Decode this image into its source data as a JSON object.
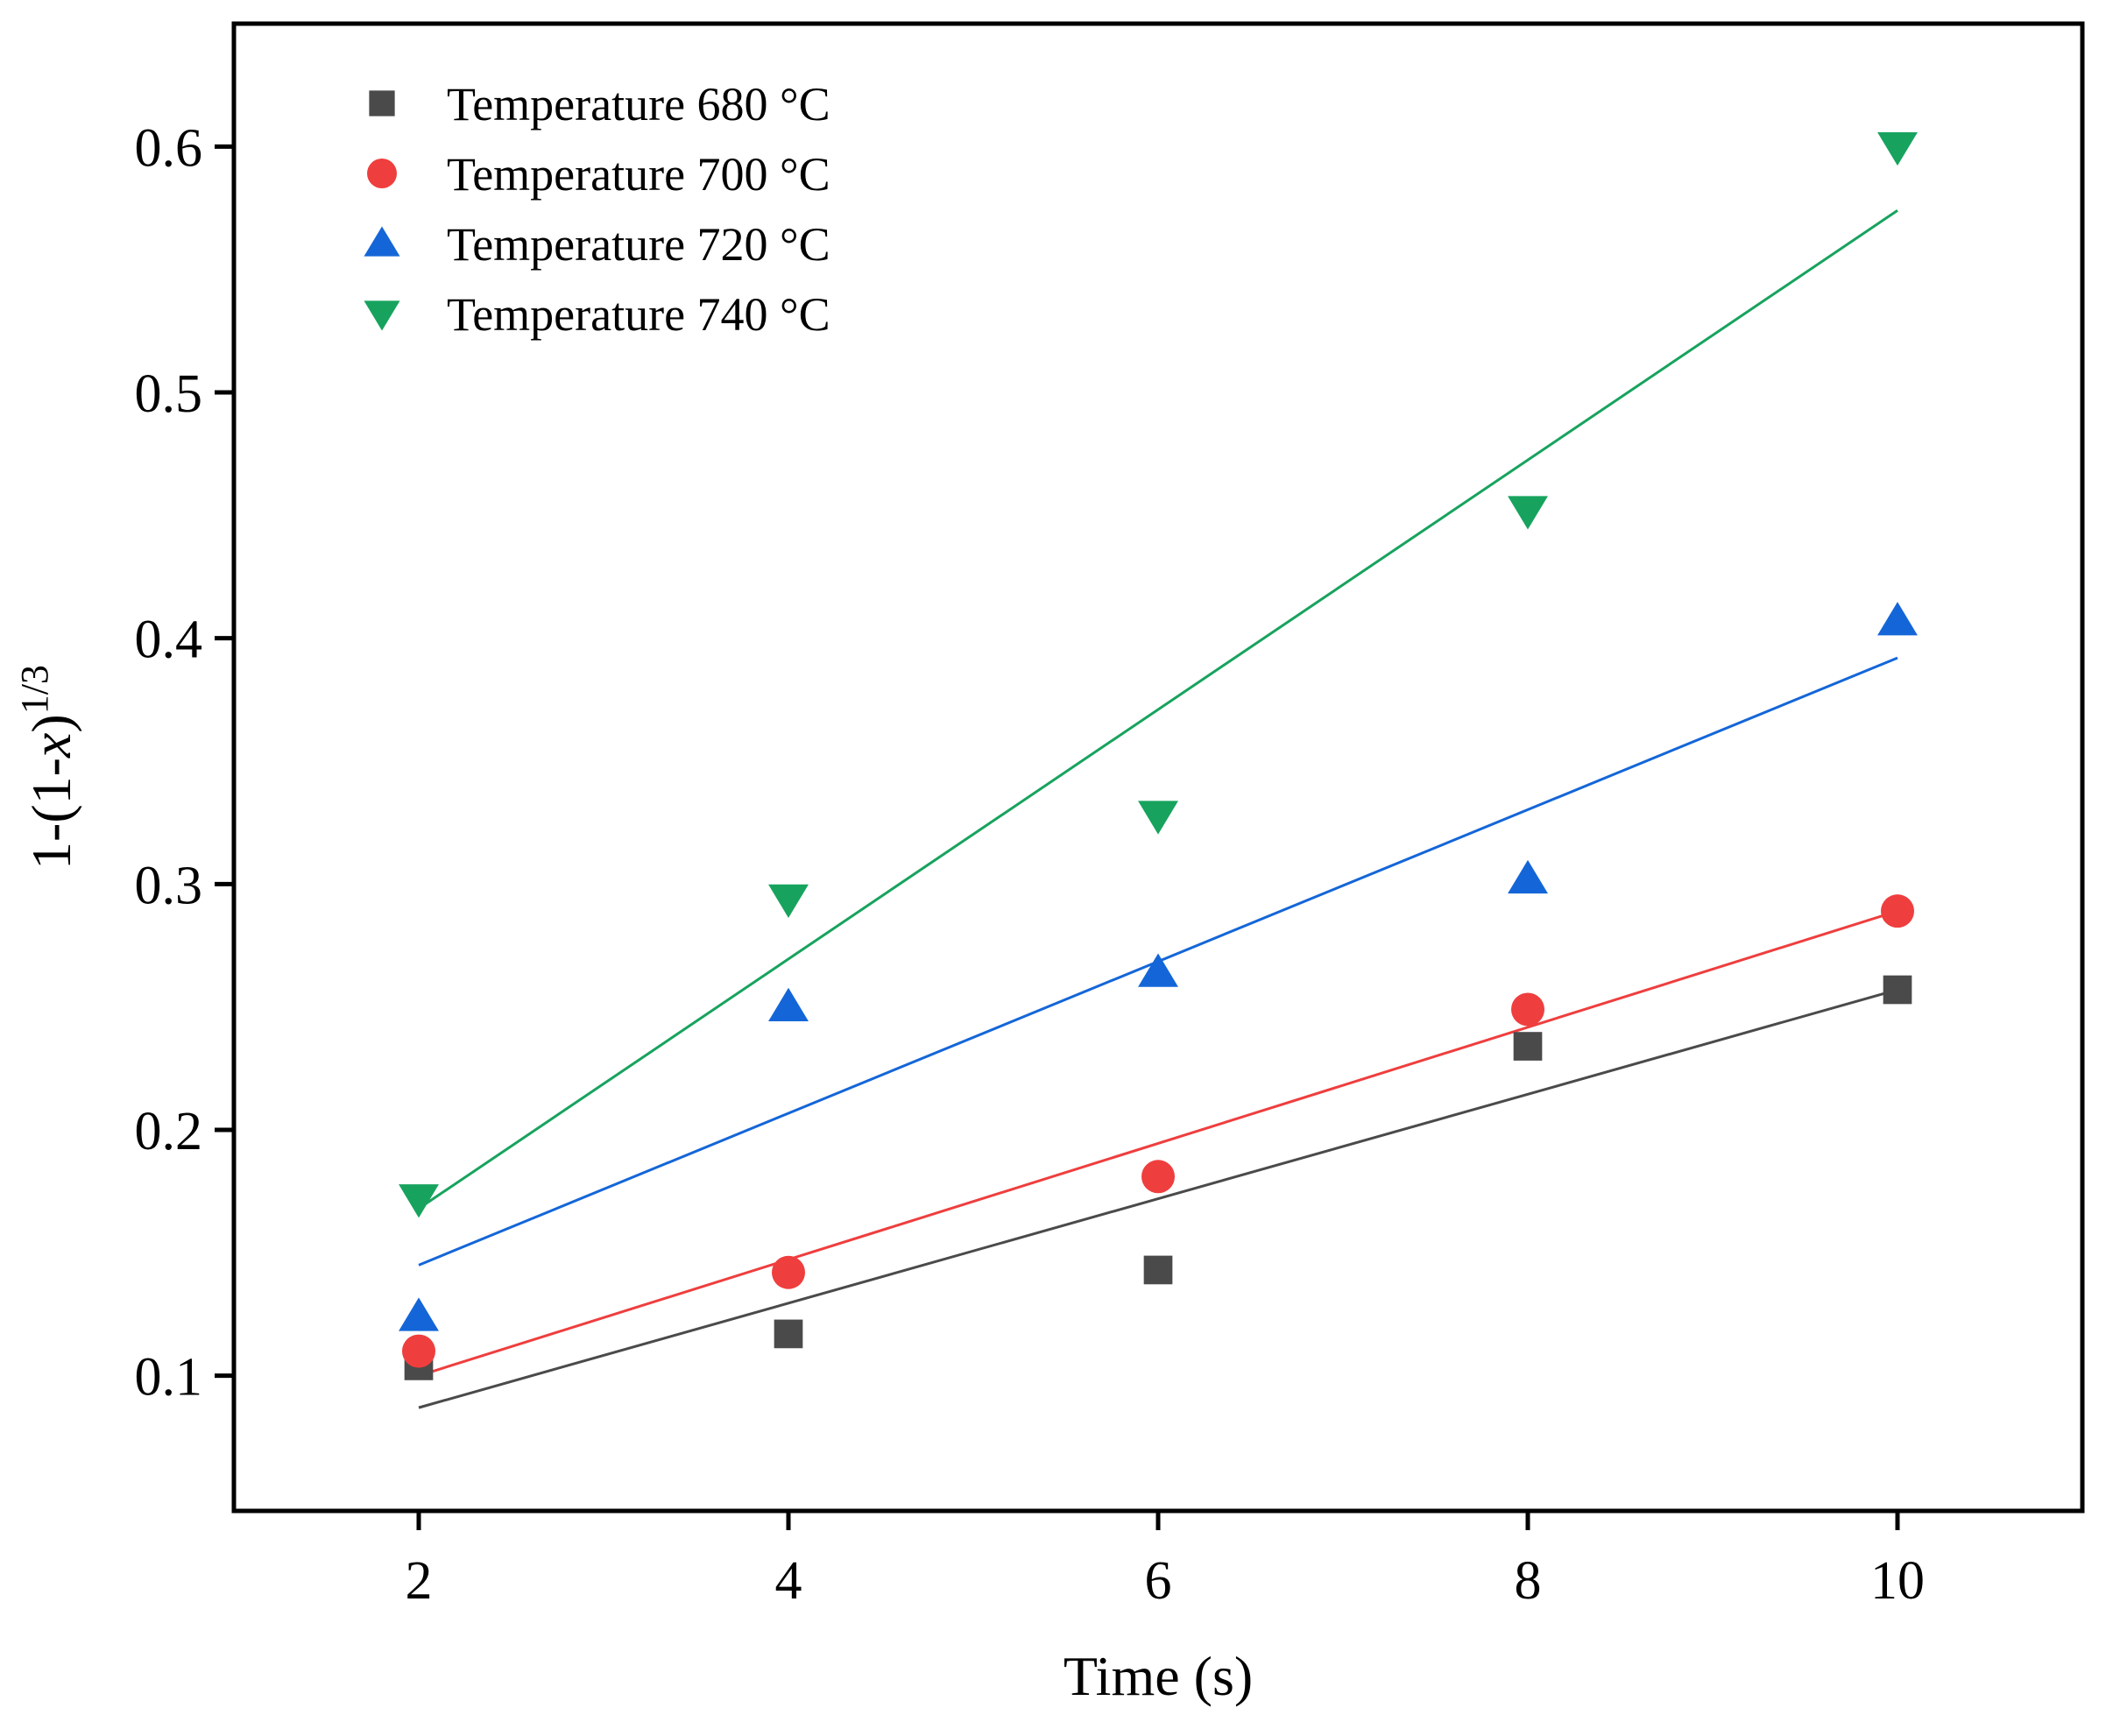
{
  "chart_data": {
    "type": "scatter",
    "title": "",
    "xlabel": "Time (s)",
    "ylabel": {
      "prefix": "1-(1-",
      "var": "x",
      "suffix": ")",
      "exponent": "1/3"
    },
    "xlim": [
      1,
      11
    ],
    "ylim": [
      0.045,
      0.65
    ],
    "x_ticks": [
      2,
      4,
      6,
      8,
      10
    ],
    "y_ticks": [
      0.1,
      0.2,
      0.3,
      0.4,
      0.5,
      0.6
    ],
    "x_tick_labels": [
      "2",
      "4",
      "6",
      "8",
      "10"
    ],
    "y_tick_labels": [
      "0.1",
      "0.2",
      "0.3",
      "0.4",
      "0.5",
      "0.6"
    ],
    "legend_position": "top-left",
    "grid": false,
    "series": [
      {
        "name": "Temperature 680 °C",
        "marker": "square",
        "color": "#4a4a4a",
        "x": [
          2,
          4,
          6,
          8,
          10
        ],
        "y": [
          0.104,
          0.117,
          0.143,
          0.234,
          0.257
        ],
        "fit": {
          "x": [
            2,
            10
          ],
          "y": [
            0.087,
            0.257
          ]
        }
      },
      {
        "name": "Temperature 700 °C",
        "marker": "circle",
        "color": "#ef3e3e",
        "x": [
          2,
          4,
          6,
          8,
          10
        ],
        "y": [
          0.11,
          0.142,
          0.181,
          0.249,
          0.289
        ],
        "fit": {
          "x": [
            2,
            10
          ],
          "y": [
            0.1,
            0.289
          ]
        }
      },
      {
        "name": "Temperature 720 °C",
        "marker": "triangle-up",
        "color": "#1466d8",
        "x": [
          2,
          4,
          6,
          8,
          10
        ],
        "y": [
          0.124,
          0.25,
          0.264,
          0.302,
          0.407
        ],
        "fit": {
          "x": [
            2,
            10
          ],
          "y": [
            0.145,
            0.392
          ]
        }
      },
      {
        "name": "Temperature 740 °C",
        "marker": "triangle-down",
        "color": "#17a35e",
        "x": [
          2,
          4,
          6,
          8,
          10
        ],
        "y": [
          0.172,
          0.294,
          0.328,
          0.452,
          0.6
        ],
        "fit": {
          "x": [
            2,
            10
          ],
          "y": [
            0.168,
            0.574
          ]
        }
      }
    ]
  }
}
